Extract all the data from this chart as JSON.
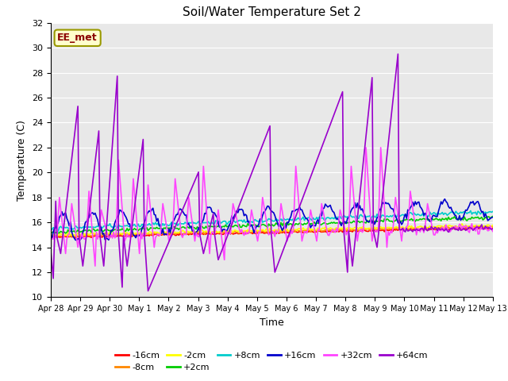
{
  "title": "Soil/Water Temperature Set 2",
  "xlabel": "Time",
  "ylabel": "Temperature (C)",
  "ylim": [
    10,
    32
  ],
  "yticks": [
    10,
    12,
    14,
    16,
    18,
    20,
    22,
    24,
    26,
    28,
    30,
    32
  ],
  "annotation": "EE_met",
  "series": {
    "-16cm": {
      "color": "#ff0000",
      "lw": 1.2
    },
    "-8cm": {
      "color": "#ff8800",
      "lw": 1.2
    },
    "-2cm": {
      "color": "#ffff00",
      "lw": 1.2
    },
    "+2cm": {
      "color": "#00cc00",
      "lw": 1.2
    },
    "+8cm": {
      "color": "#00cccc",
      "lw": 1.2
    },
    "+16cm": {
      "color": "#0000cc",
      "lw": 1.2
    },
    "+32cm": {
      "color": "#ff44ff",
      "lw": 1.2
    },
    "+64cm": {
      "color": "#9900cc",
      "lw": 1.2
    }
  },
  "xtick_labels": [
    "Apr 28",
    "Apr 29",
    "Apr 30",
    "May 1",
    "May 2",
    "May 3",
    "May 4",
    "May 5",
    "May 6",
    "May 7",
    "May 8",
    "May 9",
    "May 10",
    "May 11",
    "May 12",
    "May 13"
  ],
  "background_plot": "#e8e8e8",
  "background_fig": "#ffffff",
  "legend_row1": [
    "-16cm",
    "-8cm",
    "-2cm",
    "+2cm",
    "+8cm",
    "+16cm"
  ],
  "legend_row2": [
    "+32cm",
    "+64cm"
  ]
}
